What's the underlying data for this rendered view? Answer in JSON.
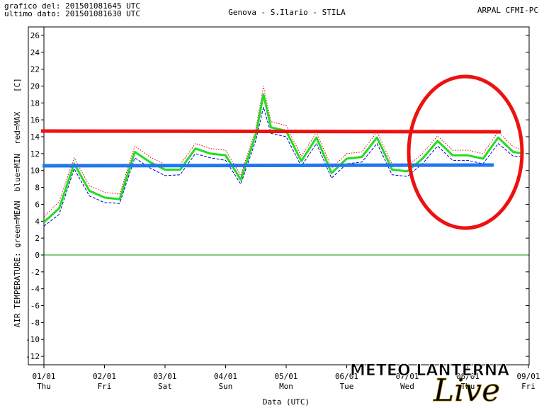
{
  "chart_data": {
    "type": "line",
    "header_left": [
      "grafico del: 201501081645 UTC",
      "ultimo dato: 201501081630 UTC"
    ],
    "title": "Genova - S.Ilario - STILA",
    "header_right": "ARPAL CFMI-PC",
    "ylabel": "AIR TEMPERATURE: green=MEAN  blue=MIN  red=MAX",
    "yunit": "[C]",
    "xlabel": "Data (UTC)",
    "watermark": "METEO LANTERNA",
    "watermark_sub": "Live",
    "xlim": [
      0,
      192
    ],
    "ylim": [
      -13,
      27
    ],
    "yticks": [
      -12,
      -10,
      -8,
      -6,
      -4,
      -2,
      0,
      2,
      4,
      6,
      8,
      10,
      12,
      14,
      16,
      18,
      20,
      22,
      24,
      26
    ],
    "xticks": [
      {
        "value": 0,
        "label": "01/01"
      },
      {
        "value": 24,
        "label": "02/01"
      },
      {
        "value": 48,
        "label": "03/01"
      },
      {
        "value": 72,
        "label": "04/01"
      },
      {
        "value": 96,
        "label": "05/01"
      },
      {
        "value": 120,
        "label": "06/01"
      },
      {
        "value": 144,
        "label": "07/01"
      },
      {
        "value": 168,
        "label": "08/01"
      },
      {
        "value": 192,
        "label": "09/01"
      }
    ],
    "xtick_days": [
      "Thu",
      "Fri",
      "Sat",
      "Sun",
      "Mon",
      "Tue",
      "Wed",
      "Thu",
      "Fri"
    ],
    "x": [
      0,
      6,
      12,
      18,
      24,
      30,
      36,
      42,
      48,
      54,
      60,
      66,
      72,
      78,
      84,
      87,
      90,
      96,
      102,
      108,
      114,
      120,
      126,
      132,
      138,
      144,
      150,
      156,
      162,
      168,
      174,
      180,
      186,
      190
    ],
    "series": [
      {
        "name": "MIN",
        "color": "#0000cc",
        "linestyle": "dashed",
        "width": 1,
        "values": [
          3.4,
          4.8,
          10.2,
          7.0,
          6.2,
          6.1,
          11.5,
          10.3,
          9.4,
          9.5,
          12.0,
          11.5,
          11.2,
          8.4,
          13.6,
          17.5,
          14.4,
          14.0,
          10.5,
          13.2,
          9.1,
          10.8,
          11.0,
          13.2,
          9.5,
          9.3,
          10.8,
          12.9,
          11.2,
          11.2,
          10.8,
          13.2,
          11.7,
          11.6
        ]
      },
      {
        "name": "MAX",
        "color": "#dd0000",
        "linestyle": "dotted",
        "width": 1,
        "values": [
          4.5,
          6.3,
          11.5,
          8.2,
          7.4,
          7.2,
          12.9,
          11.6,
          10.7,
          10.7,
          13.2,
          12.6,
          12.4,
          9.4,
          15.0,
          20.0,
          15.8,
          15.3,
          11.7,
          14.5,
          10.3,
          12.0,
          12.2,
          14.6,
          10.7,
          10.5,
          12.0,
          14.1,
          12.4,
          12.4,
          12.0,
          14.6,
          12.8,
          12.4
        ]
      },
      {
        "name": "MEAN",
        "color": "#22dd22",
        "linestyle": "solid",
        "width": 3,
        "values": [
          3.9,
          5.5,
          10.8,
          7.6,
          6.8,
          6.6,
          12.2,
          11.0,
          10.1,
          10.1,
          12.6,
          12.0,
          11.8,
          8.9,
          14.3,
          19.0,
          15.1,
          14.7,
          11.1,
          13.9,
          9.7,
          11.4,
          11.6,
          13.9,
          10.1,
          9.9,
          11.4,
          13.5,
          11.8,
          11.8,
          11.4,
          13.9,
          12.2,
          12.0
        ]
      }
    ],
    "zero_line_color": "#009900"
  }
}
